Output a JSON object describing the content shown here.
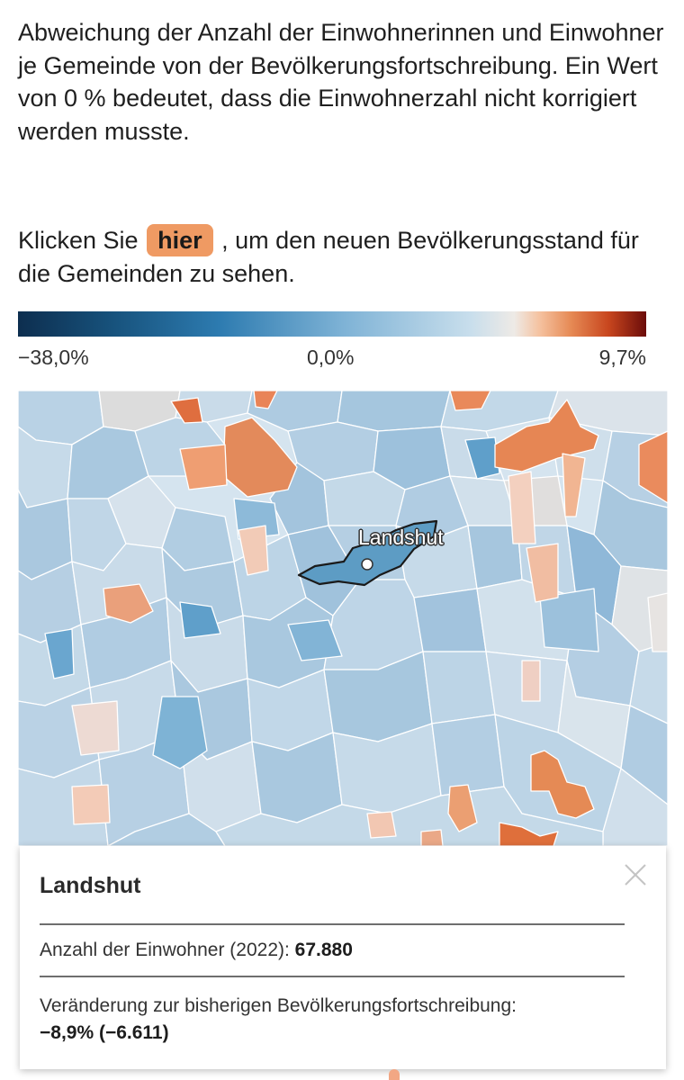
{
  "description": "Abweichung der Anzahl der Einwohnerinnen und Einwohner je Gemeinde von der Bevölkerungsfortschreibung. Ein Wert von 0 % bedeutet, dass die Einwohnerzahl nicht korrigiert werden musste.",
  "click_hint": {
    "before": "Klicken Sie ",
    "link": "hier",
    "after": " , um den neuen Bevölkerungsstand für die Gemeinden zu sehen."
  },
  "legend": {
    "min_label": "−38,0%",
    "mid_label": "0,0%",
    "max_label": "9,7%",
    "min_value": -38.0,
    "mid_value": 0.0,
    "max_value": 9.7,
    "colors": [
      "#0d2e4f",
      "#2d7bb0",
      "#c8deec",
      "#eeeae6",
      "#e68a55",
      "#6b0c0a"
    ]
  },
  "map": {
    "selected_municipality": "Landshut",
    "selected_color": "#5d9cc4"
  },
  "info_card": {
    "title": "Landshut",
    "population_label": "Anzahl der Einwohner (2022): ",
    "population_value": "67.880",
    "change_label": "Veränderung zur bisherigen Bevölkerungsfortschreibung:",
    "change_value": "−8,9% (−6.611)",
    "close_icon": "close-icon"
  }
}
